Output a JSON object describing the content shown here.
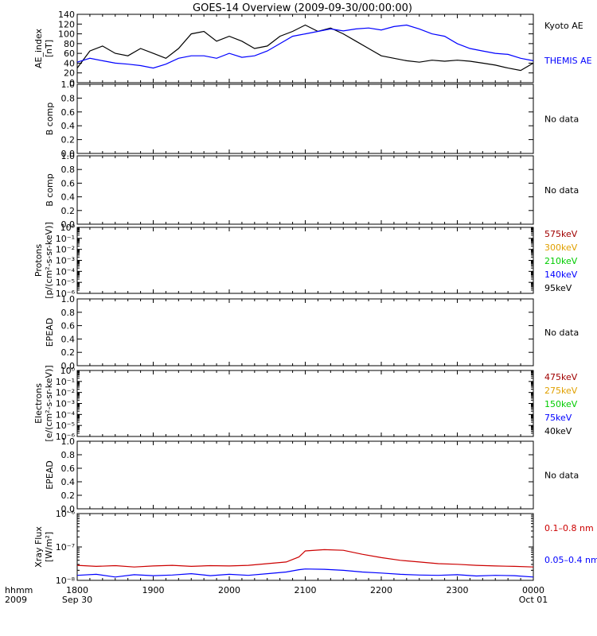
{
  "title": "GOES-14 Overview (2009-09-30/00:00:00)",
  "colors": {
    "black": "#000000",
    "blue": "#0000ff",
    "red": "#cc0000",
    "darkred": "#a00000",
    "orange": "#e0a000",
    "green": "#00cc00"
  },
  "x_axis": {
    "row_label_1": "hhmm",
    "row_label_2": "2009",
    "ticks": [
      {
        "value": 0,
        "label": "1800",
        "sub": "Sep 30"
      },
      {
        "value": 60,
        "label": "1900",
        "sub": ""
      },
      {
        "value": 120,
        "label": "2000",
        "sub": ""
      },
      {
        "value": 180,
        "label": "2100",
        "sub": ""
      },
      {
        "value": 240,
        "label": "2200",
        "sub": ""
      },
      {
        "value": 300,
        "label": "2300",
        "sub": ""
      },
      {
        "value": 360,
        "label": "0000",
        "sub": "Oct 01"
      }
    ],
    "range": [
      0,
      360
    ]
  },
  "chart_data": [
    {
      "type": "line",
      "ylabel": "AE_index",
      "yunit": "[nT]",
      "ylim": [
        0,
        140
      ],
      "yticks": [
        "0",
        "20",
        "40",
        "60",
        "80",
        "100",
        "120",
        "140"
      ],
      "x": [
        0,
        10,
        20,
        30,
        40,
        50,
        60,
        70,
        80,
        90,
        100,
        110,
        120,
        130,
        140,
        150,
        160,
        170,
        180,
        190,
        200,
        210,
        220,
        230,
        240,
        250,
        260,
        270,
        280,
        290,
        300,
        310,
        320,
        330,
        340,
        350,
        360
      ],
      "series": [
        {
          "name": "Kyoto AE",
          "color": "black",
          "values": [
            30,
            65,
            75,
            60,
            55,
            70,
            60,
            50,
            70,
            100,
            105,
            85,
            95,
            85,
            70,
            75,
            95,
            105,
            118,
            105,
            112,
            100,
            85,
            70,
            55,
            50,
            45,
            42,
            46,
            44,
            46,
            44,
            40,
            36,
            30,
            25,
            40
          ]
        },
        {
          "name": "THEMIS AE",
          "color": "blue",
          "values": [
            42,
            50,
            45,
            40,
            38,
            35,
            30,
            38,
            50,
            55,
            55,
            50,
            60,
            52,
            55,
            65,
            80,
            95,
            100,
            105,
            110,
            106,
            110,
            112,
            108,
            115,
            118,
            110,
            100,
            95,
            80,
            70,
            65,
            60,
            58,
            50,
            45
          ]
        }
      ]
    },
    {
      "type": "line",
      "ylabel": "B comp",
      "ylim": [
        0,
        1
      ],
      "yticks": [
        "0.0",
        "0.2",
        "0.4",
        "0.6",
        "0.8",
        "1.0"
      ],
      "note": "No data",
      "series": []
    },
    {
      "type": "line",
      "ylabel": "B comp",
      "ylim": [
        0,
        1
      ],
      "yticks": [
        "0.0",
        "0.2",
        "0.4",
        "0.6",
        "0.8",
        "1.0"
      ],
      "note": "No data",
      "series": []
    },
    {
      "type": "line",
      "ylabel": "Protons",
      "yunit": "[p/(cm²-s-sr-keV)]",
      "log": true,
      "yticks": [
        "10⁻⁶",
        "10⁻⁵",
        "10⁻⁴",
        "10⁻³",
        "10⁻²",
        "10⁻¹",
        "10⁰"
      ],
      "legend": [
        {
          "label": "575keV",
          "color": "darkred"
        },
        {
          "label": "300keV",
          "color": "orange"
        },
        {
          "label": "210keV",
          "color": "green"
        },
        {
          "label": "140keV",
          "color": "blue"
        },
        {
          "label": "95keV",
          "color": "black"
        }
      ],
      "series": []
    },
    {
      "type": "line",
      "ylabel": "EPEAD",
      "ylim": [
        0,
        1
      ],
      "yticks": [
        "0.0",
        "0.2",
        "0.4",
        "0.6",
        "0.8",
        "1.0"
      ],
      "note": "No data",
      "series": []
    },
    {
      "type": "line",
      "ylabel": "Electrons",
      "yunit": "[e/(cm²-s-sr-keV)]",
      "log": true,
      "yticks": [
        "10⁻⁶",
        "10⁻⁵",
        "10⁻⁴",
        "10⁻³",
        "10⁻²",
        "10⁻¹",
        "10⁰"
      ],
      "legend": [
        {
          "label": "475keV",
          "color": "darkred"
        },
        {
          "label": "275keV",
          "color": "orange"
        },
        {
          "label": "150keV",
          "color": "green"
        },
        {
          "label": "75keV",
          "color": "blue"
        },
        {
          "label": "40keV",
          "color": "black"
        }
      ],
      "series": []
    },
    {
      "type": "line",
      "ylabel": "EPEAD",
      "ylim": [
        0,
        1
      ],
      "yticks": [
        "0.0",
        "0.2",
        "0.4",
        "0.6",
        "0.8",
        "1.0"
      ],
      "note": "No data",
      "series": []
    },
    {
      "type": "line",
      "ylabel": "Xray Flux",
      "yunit": "[W/m²]",
      "log": true,
      "ylim_exp": [
        -8,
        -6
      ],
      "yticks": [
        "10⁻⁸",
        "10⁻⁷",
        "10⁻⁶"
      ],
      "x": [
        0,
        15,
        30,
        45,
        60,
        75,
        90,
        105,
        120,
        135,
        150,
        165,
        175,
        180,
        195,
        210,
        225,
        240,
        255,
        270,
        285,
        300,
        315,
        330,
        345,
        360
      ],
      "series": [
        {
          "name": "0.1–0.8 nm",
          "color": "red",
          "exp_values": [
            -7.55,
            -7.58,
            -7.56,
            -7.6,
            -7.57,
            -7.55,
            -7.58,
            -7.56,
            -7.57,
            -7.55,
            -7.5,
            -7.45,
            -7.3,
            -7.12,
            -7.08,
            -7.1,
            -7.22,
            -7.32,
            -7.4,
            -7.45,
            -7.5,
            -7.52,
            -7.55,
            -7.57,
            -7.58,
            -7.6
          ]
        },
        {
          "name": "0.05–0.4 nm",
          "color": "blue",
          "exp_values": [
            -7.85,
            -7.82,
            -7.9,
            -7.83,
            -7.86,
            -7.84,
            -7.8,
            -7.86,
            -7.82,
            -7.85,
            -7.8,
            -7.75,
            -7.68,
            -7.66,
            -7.67,
            -7.7,
            -7.75,
            -7.78,
            -7.82,
            -7.84,
            -7.85,
            -7.83,
            -7.87,
            -7.85,
            -7.86,
            -7.9
          ]
        }
      ]
    }
  ]
}
